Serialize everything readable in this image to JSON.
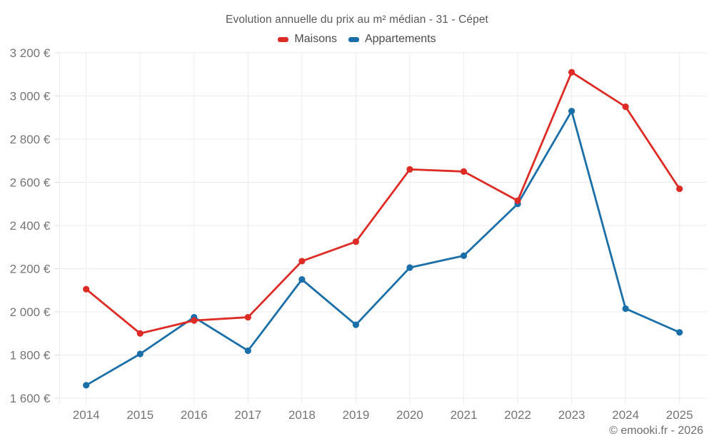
{
  "title": "Evolution annuelle du prix au m² médian - 31 - Cépet",
  "footer": "© emooki.fr - 2026",
  "colors": {
    "maisons": "#dd2b25",
    "appartements": "#1b6fa8",
    "grid": "#ebebeb",
    "tick": "#dcdcdc",
    "tick_label": "#757575",
    "title_text": "#595959",
    "legend_text": "#4a4a4a",
    "footer_text": "#6d6d6d"
  },
  "chart_data": {
    "type": "line",
    "title": "Evolution annuelle du prix au m² médian - 31 - Cépet",
    "x": [
      "2014",
      "2015",
      "2016",
      "2017",
      "2018",
      "2019",
      "2020",
      "2021",
      "2022",
      "2023",
      "2024",
      "2025"
    ],
    "series": [
      {
        "name": "Maisons",
        "color": "#dd2b25",
        "values": [
          2105,
          1900,
          1960,
          1975,
          2235,
          2325,
          2660,
          2650,
          2515,
          3110,
          2950,
          2570
        ]
      },
      {
        "name": "Appartements",
        "color": "#1b6fa8",
        "values": [
          1660,
          1805,
          1975,
          1820,
          2150,
          1940,
          2205,
          2260,
          2500,
          2930,
          2015,
          1905
        ]
      }
    ],
    "ylim": [
      1600,
      3200
    ],
    "ytick_step": 200,
    "y_tick_suffix": "€",
    "xlabel": "",
    "ylabel": "",
    "grid": true,
    "legend_position": "top",
    "legend_entries": [
      "Maisons",
      "Appartements"
    ]
  }
}
